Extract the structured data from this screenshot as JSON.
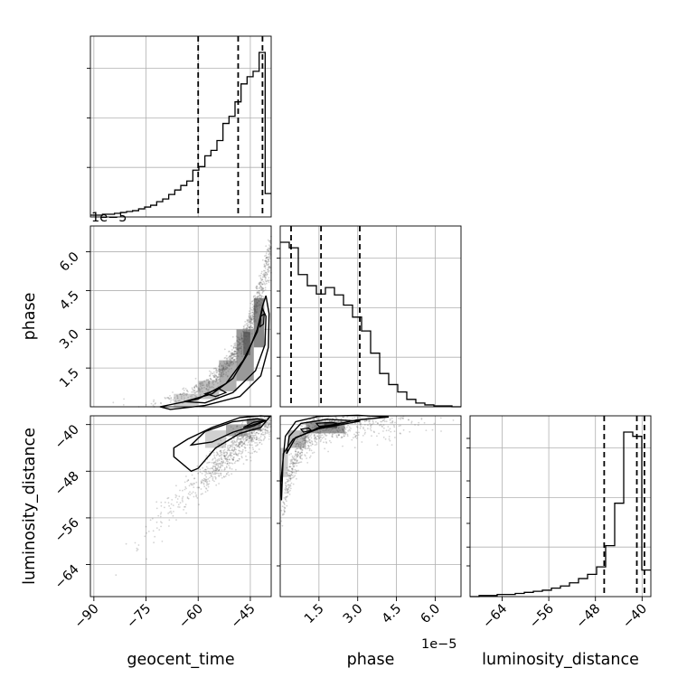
{
  "chart_data": {
    "type": "corner",
    "parameters": [
      "geocent_time",
      "phase",
      "luminosity_distance"
    ],
    "axis_labels": {
      "geocent_time": "geocent_time",
      "phase": "phase",
      "luminosity_distance": "luminosity_distance"
    },
    "ranges": {
      "geocent_time": [
        -91,
        -39
      ],
      "phase": [
        0,
        7.0
      ],
      "luminosity_distance": [
        -69.5,
        -38.5
      ]
    },
    "ticks": {
      "geocent_time": {
        "values": [
          -90,
          -75,
          -60,
          -45
        ],
        "labels": [
          "−90",
          "−75",
          "−60",
          "−45"
        ]
      },
      "phase": {
        "values": [
          1.5,
          3.0,
          4.5,
          6.0
        ],
        "labels": [
          "1.5",
          "3.0",
          "4.5",
          "6.0"
        ]
      },
      "luminosity_distance": {
        "values": [
          -64,
          -56,
          -48,
          -40
        ],
        "labels": [
          "−64",
          "−56",
          "−48",
          "−40"
        ]
      }
    },
    "offset_text": "1e−5",
    "grid": true,
    "histograms": {
      "geocent_time": {
        "bins_edges": [
          -91,
          -89.27,
          -87.53,
          -85.8,
          -84.07,
          -82.33,
          -80.6,
          -78.87,
          -77.13,
          -75.4,
          -73.67,
          -71.93,
          -70.2,
          -68.47,
          -66.73,
          -65,
          -63.27,
          -61.53,
          -59.8,
          -58.07,
          -56.33,
          -54.6,
          -52.87,
          -51.13,
          -49.4,
          -47.67,
          -45.93,
          -44.2,
          -42.47,
          -40.73,
          -39
        ],
        "counts": [
          2,
          2,
          3,
          3,
          4,
          5,
          6,
          7,
          9,
          11,
          13,
          17,
          20,
          25,
          30,
          35,
          40,
          52,
          56,
          68,
          74,
          85,
          104,
          112,
          128,
          148,
          156,
          162,
          183,
          26
        ],
        "quantiles": [
          -60,
          -48.5,
          -41.5
        ]
      },
      "phase": {
        "bins_edges": [
          0,
          0.35,
          0.7,
          1.05,
          1.4,
          1.75,
          2.1,
          2.45,
          2.8,
          3.15,
          3.5,
          3.85,
          4.2,
          4.55,
          4.9,
          5.25,
          5.6,
          5.95,
          6.3,
          6.65,
          7.0
        ],
        "counts": [
          178,
          172,
          143,
          131,
          122,
          129,
          121,
          110,
          97,
          82,
          58,
          36,
          24,
          16,
          8,
          4,
          2,
          1,
          1,
          0
        ],
        "quantiles": [
          0.42,
          1.58,
          3.08
        ]
      },
      "luminosity_distance": {
        "bins_edges": [
          -69.5,
          -67.95,
          -66.4,
          -64.85,
          -63.3,
          -61.75,
          -60.2,
          -58.65,
          -57.1,
          -55.55,
          -54,
          -52.45,
          -50.9,
          -49.35,
          -47.8,
          -46.25,
          -44.7,
          -43.15,
          -41.6,
          -40.05,
          -38.5
        ],
        "counts": [
          0,
          1,
          1,
          2,
          2,
          3,
          4,
          5,
          6,
          8,
          10,
          13,
          17,
          21,
          28,
          48,
          88,
          155,
          151,
          25
        ],
        "quantiles": [
          -46.5,
          -40.9,
          -39.6
        ]
      }
    },
    "pairs": [
      {
        "x": "geocent_time",
        "y": "phase",
        "style": "2d-density-contours",
        "trend": "phase rises steeply as geocent_time increases"
      },
      {
        "x": "geocent_time",
        "y": "luminosity_distance",
        "style": "2d-density-contours",
        "trend": "linear positive correlation"
      },
      {
        "x": "phase",
        "y": "luminosity_distance",
        "style": "2d-density-contours",
        "trend": "saturating curve"
      }
    ]
  }
}
